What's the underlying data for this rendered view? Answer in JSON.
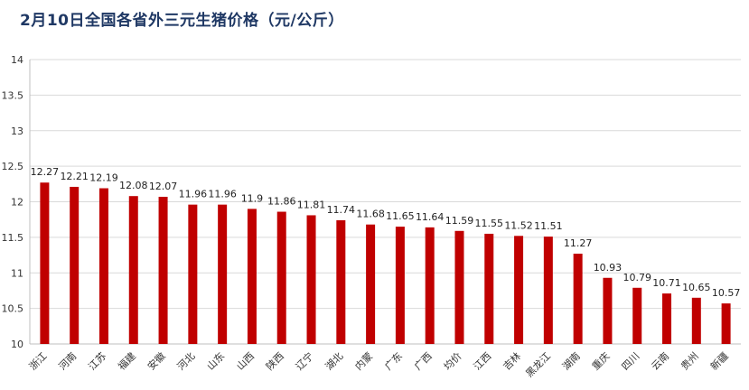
{
  "chart_data": {
    "type": "bar",
    "title": "2月10日全国各省外三元生猪价格（元/公斤）",
    "categories": [
      "浙江",
      "河南",
      "江苏",
      "福建",
      "安徽",
      "河北",
      "山东",
      "山西",
      "陕西",
      "辽宁",
      "湖北",
      "内蒙",
      "广东",
      "广西",
      "均价",
      "江西",
      "吉林",
      "黑龙江",
      "湖南",
      "重庆",
      "四川",
      "云南",
      "贵州",
      "新疆"
    ],
    "values": [
      12.27,
      12.21,
      12.19,
      12.08,
      12.07,
      11.96,
      11.96,
      11.9,
      11.86,
      11.81,
      11.74,
      11.68,
      11.65,
      11.64,
      11.59,
      11.55,
      11.52,
      11.51,
      11.27,
      10.93,
      10.79,
      10.71,
      10.65,
      10.57
    ],
    "ylim": [
      10,
      14
    ],
    "yticks": [
      10,
      10.5,
      11,
      11.5,
      12,
      12.5,
      13,
      13.5,
      14
    ],
    "grid": true,
    "colors": {
      "bar": "#c00000",
      "title": "#1f3864",
      "grid": "#d9d9d9"
    }
  }
}
